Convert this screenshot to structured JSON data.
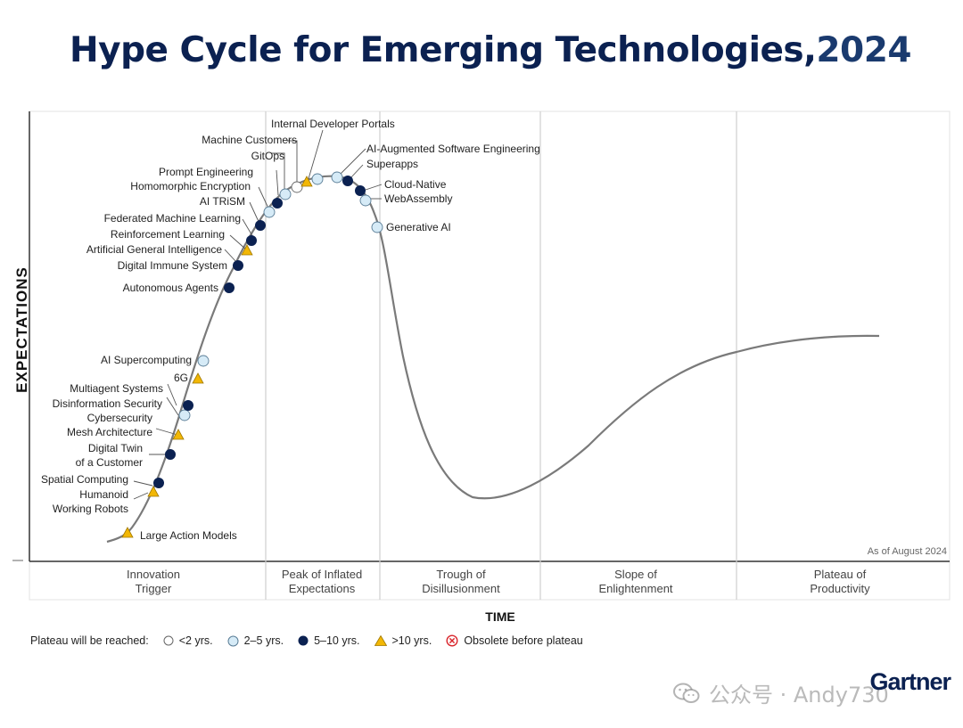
{
  "title": {
    "main": "Hype Cycle for Emerging Technologies,",
    "year": "2024"
  },
  "chart_data": {
    "type": "hype-cycle",
    "ylabel": "EXPECTATIONS",
    "xlabel": "TIME",
    "as_of": "As of August 2024",
    "phases": [
      {
        "line1": "Innovation",
        "line2": "Trigger"
      },
      {
        "line1": "Peak of Inflated",
        "line2": "Expectations"
      },
      {
        "line1": "Trough of",
        "line2": "Disillusionment"
      },
      {
        "line1": "Slope of",
        "line2": "Enlightenment"
      },
      {
        "line1": "Plateau of",
        "line2": "Productivity"
      }
    ],
    "technologies": [
      {
        "name": "Large Action Models",
        "plateau": ">10 yrs."
      },
      {
        "name": "Humanoid Working Robots",
        "line1": "Humanoid",
        "line2": "Working Robots",
        "plateau": ">10 yrs."
      },
      {
        "name": "Spatial Computing",
        "plateau": "5–10 yrs."
      },
      {
        "name": "Digital Twin of a Customer",
        "line1": "Digital Twin",
        "line2": "of a Customer",
        "plateau": "5–10 yrs."
      },
      {
        "name": "Mesh Architecture",
        "plateau": ">10 yrs."
      },
      {
        "name": "Cybersecurity",
        "plateau": "2–5 yrs."
      },
      {
        "name": "Disinformation Security",
        "plateau": "5–10 yrs."
      },
      {
        "name": "Multiagent Systems",
        "plateau": "5–10 yrs."
      },
      {
        "name": "6G",
        "plateau": ">10 yrs."
      },
      {
        "name": "AI Supercomputing",
        "plateau": "2–5 yrs."
      },
      {
        "name": "Autonomous Agents",
        "plateau": "5–10 yrs."
      },
      {
        "name": "Digital Immune System",
        "plateau": "5–10 yrs."
      },
      {
        "name": "Artificial General Intelligence",
        "plateau": ">10 yrs."
      },
      {
        "name": "Reinforcement Learning",
        "plateau": "5–10 yrs."
      },
      {
        "name": "Federated Machine Learning",
        "plateau": "5–10 yrs."
      },
      {
        "name": "AI TRiSM",
        "plateau": "5–10 yrs."
      },
      {
        "name": "Homomorphic Encryption",
        "plateau": "2–5 yrs."
      },
      {
        "name": "Prompt Engineering",
        "plateau": "2–5 yrs."
      },
      {
        "name": "GitOps",
        "plateau": "<2 yrs."
      },
      {
        "name": "Machine Customers",
        "plateau": ">10 yrs."
      },
      {
        "name": "Internal Developer Portals",
        "plateau": "2–5 yrs."
      },
      {
        "name": "AI-Augmented Software Engineering",
        "plateau": "2–5 yrs."
      },
      {
        "name": "Superapps",
        "plateau": "5–10 yrs."
      },
      {
        "name": "Cloud-Native",
        "plateau": "5–10 yrs."
      },
      {
        "name": "WebAssembly",
        "plateau": "2–5 yrs."
      },
      {
        "name": "Generative AI",
        "plateau": "2–5 yrs."
      }
    ],
    "legend": {
      "title": "Plateau will be reached:",
      "items": [
        {
          "label": "<2 yrs.",
          "marker": "open-circle"
        },
        {
          "label": "2–5 yrs.",
          "marker": "light-blue-circle"
        },
        {
          "label": "5–10 yrs.",
          "marker": "dark-navy-circle"
        },
        {
          "label": ">10 yrs.",
          "marker": "yellow-triangle"
        },
        {
          "label": "Obsolete before plateau",
          "marker": "red-x-circle"
        }
      ]
    },
    "colors": {
      "curve": "#7a7a7a",
      "navy": "#0b2151",
      "light_blue": "#d6ebf7",
      "yellow": "#f2b705",
      "red": "#d9262c",
      "title": "#0b2151"
    }
  },
  "brand": "Gartner",
  "watermark": "公众号 · Andy730"
}
